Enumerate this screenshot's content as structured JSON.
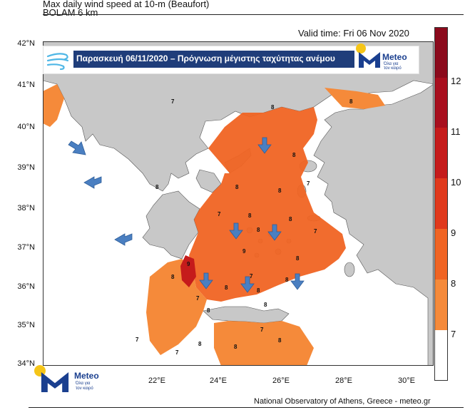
{
  "header": {
    "title": "Max daily wind speed at 10-m (Beaufort)",
    "model": "BOLAM 6 km",
    "valid_time": "Valid time: Fri 06 Nov 2020"
  },
  "banner": {
    "text": "Παρασκευή 06/11/2020 – Πρόγνωση μέγιστης ταχύτητας ανέμου",
    "logo_word": "Meteo",
    "logo_sub_1": "Όλα για",
    "logo_sub_2": "τον καιρό"
  },
  "bottom_logo": {
    "word": "Meteo",
    "sub_1": "Όλα για",
    "sub_2": "τον καιρό"
  },
  "footer": {
    "credit": "National Observatory of Athens, Greece - meteo.gr"
  },
  "axes": {
    "lat_ticks": [
      "42°N",
      "41°N",
      "40°N",
      "39°N",
      "38°N",
      "37°N",
      "36°N",
      "35°N",
      "34°N"
    ],
    "lon_ticks": [
      "22°E",
      "24°E",
      "26°E",
      "28°E",
      "30°E"
    ]
  },
  "colorbar": {
    "labels": [
      "12",
      "11",
      "10",
      "9",
      "8",
      "7"
    ],
    "colors": [
      "#8b0a1c",
      "#a80f1e",
      "#c51b1b",
      "#e0391c",
      "#f06423",
      "#f58a3a",
      "#ffffff"
    ]
  },
  "colors": {
    "land": "#c8c8c8",
    "sea": "#ffffff",
    "arrow": "#4a7fc1"
  },
  "map_labels": {
    "values": [
      "7",
      "8",
      "9",
      "8",
      "8",
      "8",
      "8",
      "8",
      "8",
      "7",
      "8",
      "7",
      "8",
      "8",
      "7",
      "8",
      "8",
      "9",
      "8",
      "7",
      "8",
      "8",
      "7",
      "7",
      "8",
      "8",
      "8",
      "7",
      "8",
      "7"
    ]
  }
}
